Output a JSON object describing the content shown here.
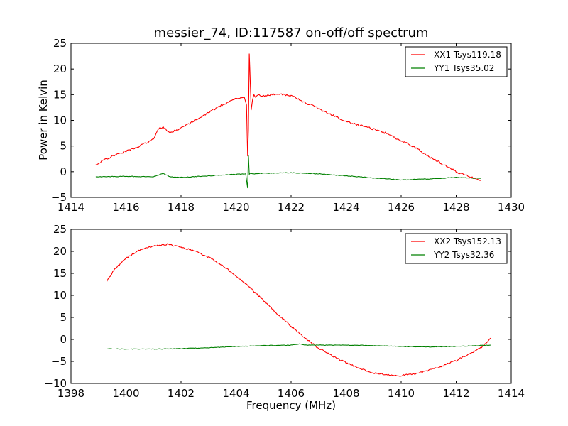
{
  "chart_data": [
    {
      "type": "line",
      "title": "messier_74, ID:117587 on-off/off spectrum",
      "xlabel": "",
      "ylabel": "Power in Kelvin",
      "xlim": [
        1414,
        1430
      ],
      "ylim": [
        -5,
        25
      ],
      "xticks": [
        1414,
        1416,
        1418,
        1420,
        1422,
        1424,
        1426,
        1428,
        1430
      ],
      "yticks": [
        -5,
        0,
        5,
        10,
        15,
        20,
        25
      ],
      "legend": "top-right",
      "series": [
        {
          "name": "XX1 Tsys119.18",
          "color": "#ff0000",
          "x": [
            1414.9,
            1415.2,
            1415.5,
            1416.0,
            1416.5,
            1417.0,
            1417.2,
            1417.35,
            1417.6,
            1418.0,
            1418.5,
            1419.0,
            1419.5,
            1420.0,
            1420.3,
            1420.38,
            1420.42,
            1420.45,
            1420.48,
            1420.5,
            1420.55,
            1420.6,
            1420.65,
            1420.7,
            1420.8,
            1421.0,
            1421.5,
            1422.0,
            1422.5,
            1423.0,
            1423.5,
            1424.0,
            1424.5,
            1425.0,
            1425.5,
            1426.0,
            1426.5,
            1427.0,
            1427.5,
            1428.0,
            1428.5,
            1428.9
          ],
          "y": [
            1.2,
            2.3,
            3.0,
            4.0,
            5.0,
            6.3,
            8.5,
            8.6,
            7.6,
            8.5,
            10.0,
            11.5,
            13.0,
            14.3,
            14.5,
            13.0,
            3.0,
            8.0,
            23.0,
            20.0,
            12.0,
            14.0,
            15.0,
            14.5,
            15.0,
            14.8,
            15.2,
            14.8,
            13.5,
            12.3,
            11.0,
            9.8,
            9.0,
            8.3,
            7.4,
            6.0,
            4.8,
            3.0,
            1.5,
            0.0,
            -1.0,
            -1.7
          ]
        },
        {
          "name": "YY1 Tsys35.02",
          "color": "#008000",
          "x": [
            1414.9,
            1416.0,
            1417.0,
            1417.35,
            1417.6,
            1418.0,
            1419.0,
            1420.0,
            1420.35,
            1420.42,
            1420.45,
            1420.48,
            1420.52,
            1420.6,
            1421.0,
            1422.0,
            1423.0,
            1424.0,
            1425.0,
            1426.0,
            1427.0,
            1428.0,
            1428.9
          ],
          "y": [
            -1.0,
            -0.9,
            -1.0,
            -0.3,
            -1.0,
            -1.1,
            -0.8,
            -0.5,
            -0.4,
            -3.2,
            3.2,
            -0.5,
            -0.3,
            -0.4,
            -0.3,
            -0.2,
            -0.4,
            -0.8,
            -1.2,
            -1.6,
            -1.4,
            -1.1,
            -1.3
          ]
        }
      ]
    },
    {
      "type": "line",
      "title": "",
      "xlabel": "Frequency (MHz)",
      "ylabel": "",
      "xlim": [
        1398,
        1414
      ],
      "ylim": [
        -10,
        25
      ],
      "xticks": [
        1398,
        1400,
        1402,
        1404,
        1406,
        1408,
        1410,
        1412,
        1414
      ],
      "yticks": [
        -10,
        -5,
        0,
        5,
        10,
        15,
        20,
        25
      ],
      "legend": "top-right",
      "series": [
        {
          "name": "XX2 Tsys152.13",
          "color": "#ff0000",
          "x": [
            1399.3,
            1399.6,
            1400.0,
            1400.5,
            1401.0,
            1401.5,
            1402.0,
            1402.5,
            1403.0,
            1403.5,
            1404.0,
            1404.5,
            1405.0,
            1405.5,
            1406.0,
            1406.5,
            1407.0,
            1407.5,
            1408.0,
            1408.5,
            1409.0,
            1409.5,
            1410.0,
            1410.5,
            1411.0,
            1411.5,
            1412.0,
            1412.5,
            1413.0,
            1413.25
          ],
          "y": [
            13.2,
            16.0,
            18.5,
            20.3,
            21.2,
            21.6,
            21.0,
            20.0,
            18.7,
            16.8,
            14.5,
            11.8,
            8.8,
            5.8,
            3.0,
            0.3,
            -2.0,
            -3.8,
            -5.3,
            -6.6,
            -7.6,
            -8.1,
            -8.2,
            -7.8,
            -7.0,
            -6.0,
            -4.8,
            -3.3,
            -1.4,
            0.3
          ]
        },
        {
          "name": "YY2 Tsys32.36",
          "color": "#008000",
          "x": [
            1399.3,
            1400.0,
            1401.0,
            1402.0,
            1403.0,
            1404.0,
            1405.0,
            1406.0,
            1406.3,
            1406.5,
            1407.0,
            1408.0,
            1409.0,
            1410.0,
            1411.0,
            1412.0,
            1413.25
          ],
          "y": [
            -2.1,
            -2.2,
            -2.2,
            -2.1,
            -1.9,
            -1.6,
            -1.4,
            -1.3,
            -1.0,
            -1.3,
            -1.3,
            -1.3,
            -1.4,
            -1.6,
            -1.7,
            -1.6,
            -1.3
          ]
        }
      ]
    }
  ]
}
